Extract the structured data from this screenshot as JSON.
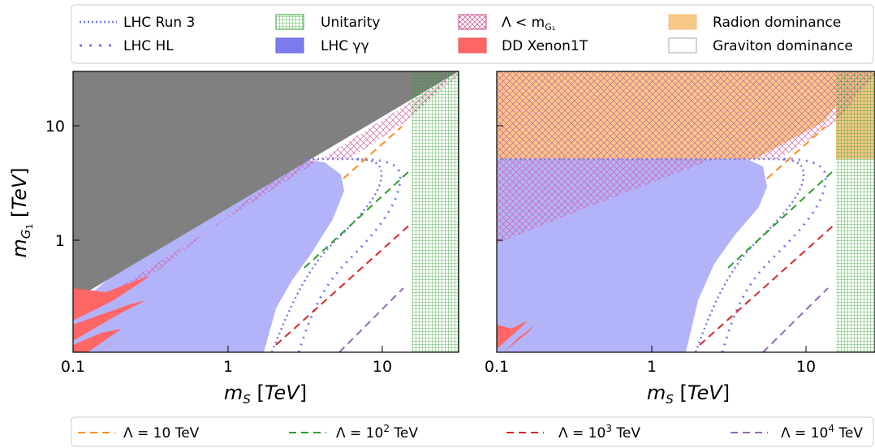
{
  "colors": {
    "excluded_theory": "#808080",
    "lhc_gg": "#b3b3fa",
    "dd_xenon": "#ff6666",
    "unitarity": "#2ca02c",
    "lambda_lt_mg": "#d0609e",
    "radion": "#f7c888",
    "lhc_line": "#7777ee",
    "lambda10": "#ff8c1a",
    "lambda1e2": "#2ca02c",
    "lambda1e3": "#d62728",
    "lambda1e4": "#9467bd"
  },
  "legend_top": [
    {
      "key": "lhc_run3",
      "label": "LHC Run 3"
    },
    {
      "key": "unitarity",
      "label": "Unitarity"
    },
    {
      "key": "lambda_lt",
      "label": "Λ < m",
      "sub": "G₁"
    },
    {
      "key": "radion",
      "label": "Radion dominance"
    },
    {
      "key": "lhc_hl",
      "label": "LHC HL"
    },
    {
      "key": "lhc_gg",
      "label": "LHC γγ"
    },
    {
      "key": "dd",
      "label": "DD Xenon1T"
    },
    {
      "key": "graviton",
      "label": "Graviton dominance"
    }
  ],
  "legend_bottom": [
    {
      "key": "l10",
      "pre": "Λ = 10 TeV",
      "exp": ""
    },
    {
      "key": "l1e2",
      "pre": "Λ = 10",
      "exp": "2",
      "post": " TeV"
    },
    {
      "key": "l1e3",
      "pre": "Λ = 10",
      "exp": "3",
      "post": " TeV"
    },
    {
      "key": "l1e4",
      "pre": "Λ = 10",
      "exp": "4",
      "post": " TeV"
    }
  ],
  "axes": {
    "xlabel": "m_S [TeV]",
    "ylabel": "m_G1 [TeV]",
    "xscale": "log",
    "yscale": "log",
    "xlim": [
      0.1,
      30
    ],
    "ylim": [
      0.1,
      30
    ],
    "xticks": [
      "0.1",
      "1",
      "10"
    ],
    "yticks": [
      "1",
      "10"
    ]
  },
  "chart_data": [
    {
      "type": "area",
      "panel": "left",
      "x_scale": "log",
      "y_scale": "log",
      "xlim": [
        0.1,
        30
      ],
      "ylim": [
        0.1,
        30
      ],
      "xlabel": "m_S [TeV]",
      "ylabel": "m_G1 [TeV]",
      "regions": [
        {
          "name": "excluded (grey)",
          "boundary": [
            [
              0.1,
              0.34
            ],
            [
              30,
              28
            ]
          ]
        },
        {
          "name": "Λ < m_G1",
          "boundary": [
            [
              0.55,
              1.2
            ],
            [
              2.8,
              5.0
            ],
            [
              30,
              28
            ]
          ]
        },
        {
          "name": "Unitarity",
          "x_min": 15.5
        },
        {
          "name": "LHC γγ",
          "y_max": 5.0,
          "x_max_approx": 5.0
        },
        {
          "name": "DD Xenon1T",
          "x_max_approx": 0.45,
          "y_max_approx": 0.45
        }
      ],
      "series": [
        {
          "name": "LHC Run 3",
          "x": [
            2.1,
            4,
            7,
            10.5,
            13
          ],
          "y": [
            0.1,
            0.5,
            1.2,
            2.5,
            5.0
          ]
        },
        {
          "name": "LHC HL",
          "x": [
            3,
            5,
            8,
            9.2,
            10
          ],
          "y": [
            0.1,
            0.4,
            1.5,
            3.5,
            5.0
          ]
        },
        {
          "name": "Λ = 10 TeV",
          "x": [
            5.5,
            12.5
          ],
          "y": [
            3.9,
            10.2
          ]
        },
        {
          "name": "Λ = 10² TeV",
          "x": [
            2.0,
            12.5
          ],
          "y": [
            0.55,
            3.9
          ]
        },
        {
          "name": "Λ = 10³ TeV",
          "x": [
            2.0,
            12.5
          ],
          "y": [
            0.15,
            1.35
          ]
        },
        {
          "name": "Λ = 10⁴ TeV",
          "x": [
            5.0,
            12.5
          ],
          "y": [
            0.1,
            0.38
          ]
        }
      ]
    },
    {
      "type": "area",
      "panel": "right",
      "x_scale": "log",
      "y_scale": "log",
      "xlim": [
        0.1,
        30
      ],
      "ylim": [
        0.1,
        30
      ],
      "xlabel": "m_S [TeV]",
      "regions": [
        {
          "name": "Radion dominance",
          "y_min": 5.0
        },
        {
          "name": "Λ < m_G1",
          "boundary": [
            [
              0.1,
              1.6
            ],
            [
              2.5,
              5.0
            ]
          ]
        },
        {
          "name": "Unitarity",
          "x_min": 15.5
        },
        {
          "name": "LHC γγ",
          "y_max": 5.0
        },
        {
          "name": "DD Xenon1T",
          "x_max_approx": 0.2,
          "y_max_approx": 0.2
        }
      ],
      "series": [
        {
          "name": "LHC Run 3",
          "x": [
            2.1,
            4,
            7,
            10.5,
            13
          ],
          "y": [
            0.1,
            0.5,
            1.2,
            2.5,
            5.0
          ]
        },
        {
          "name": "LHC HL",
          "x": [
            3,
            5,
            8,
            9.2,
            10
          ],
          "y": [
            0.1,
            0.4,
            1.5,
            3.5,
            5.0
          ]
        },
        {
          "name": "Λ = 10 TeV",
          "x": [
            5.5,
            12.5
          ],
          "y": [
            3.9,
            10.2
          ]
        },
        {
          "name": "Λ = 10² TeV",
          "x": [
            2.0,
            12.5
          ],
          "y": [
            0.55,
            3.9
          ]
        },
        {
          "name": "Λ = 10³ TeV",
          "x": [
            2.0,
            12.5
          ],
          "y": [
            0.15,
            1.35
          ]
        },
        {
          "name": "Λ = 10⁴ TeV",
          "x": [
            5.0,
            12.5
          ],
          "y": [
            0.1,
            0.38
          ]
        }
      ]
    }
  ]
}
